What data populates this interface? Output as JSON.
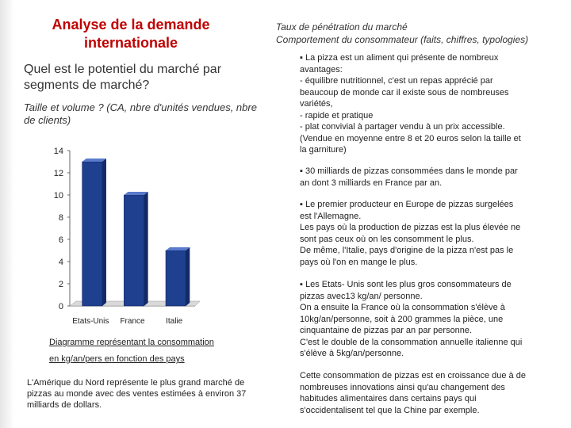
{
  "left": {
    "title_line1": "Analyse de la demande",
    "title_line2": "internationale",
    "question": "Quel est le potentiel du marché par segments de marché?",
    "subtitle": "Taille et volume ? (CA, nbre d'unités vendues, nbre de clients)",
    "caption_line1": "Diagramme représentant la consommation",
    "caption_line2": "en kg/an/pers en fonction des pays",
    "note": "L'Amérique du Nord représente le plus grand marché de pizzas au monde avec des ventes estimées à environ 37 milliards de dollars."
  },
  "chart_data": {
    "type": "bar",
    "categories": [
      "Etats-Unis",
      "France",
      "Italie"
    ],
    "values": [
      13,
      10,
      5
    ],
    "yticks": [
      0,
      2,
      4,
      6,
      8,
      10,
      12,
      14
    ],
    "ylim": [
      0,
      14
    ],
    "bar_color": "#1f3f8f",
    "grid": false
  },
  "right": {
    "title_line1": "Taux de pénétration du marché",
    "title_line2": "Comportement du consommateur (faits, chiffres, typologies)",
    "block1": [
      "▪ La pizza est un aliment qui présente de nombreux",
      "avantages:",
      "- équilibre nutritionnel, c'est un repas apprécié par",
      "beaucoup de monde car il existe sous de nombreuses",
      "variétés,",
      "- rapide et pratique",
      "- plat convivial à partager vendu à un prix accessible.",
      "(Vendue en moyenne entre 8 et 20 euros selon la taille et",
      "la garniture)"
    ],
    "block2": [
      "▪ 30 milliards de pizzas consommées dans le monde par",
      "an dont 3 milliards en France par an."
    ],
    "block3": [
      "▪ Le premier producteur en Europe de pizzas surgelées",
      "est l'Allemagne.",
      "Les pays où la production de pizzas est la plus élevée ne",
      "sont pas ceux où on les consomment le plus.",
      "De même, l'Italie, pays d'origine de la pizza n'est pas le",
      "pays où l'on en mange le plus."
    ],
    "block4": [
      "▪ Les Etats- Unis sont les plus gros consommateurs de",
      "pizzas avec13 kg/an/ personne.",
      "On a ensuite la France où la consommation s'élève à",
      "10kg/an/personne, soit à 200 grammes la pièce, une",
      "cinquantaine de pizzas par an par personne.",
      "C'est le double de la consommation annuelle italienne qui",
      "s'élève à 5kg/an/personne."
    ],
    "block5": [
      "Cette consommation de pizzas est en croissance due à de",
      "nombreuses innovations ainsi qu'au changement des",
      "habitudes alimentaires dans certains pays qui",
      "s'occidentalisent tel que la Chine par exemple."
    ]
  }
}
